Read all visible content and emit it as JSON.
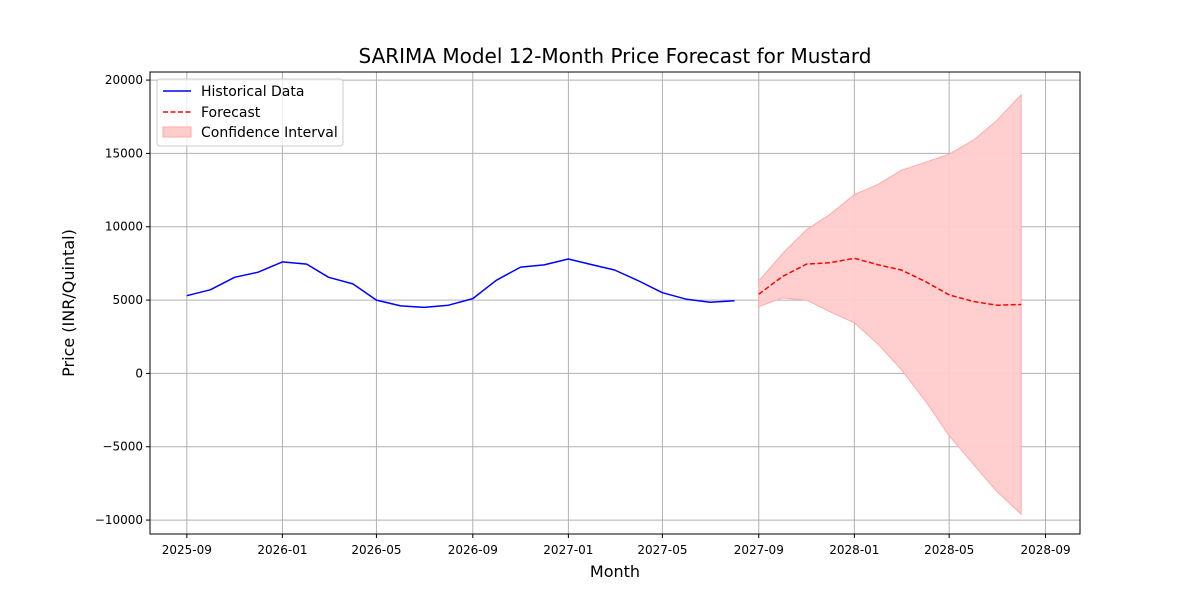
{
  "chart_data": {
    "type": "line",
    "title": "SARIMA Model 12-Month Price Forecast for Mustard",
    "xlabel": "Month",
    "ylabel": "Price (INR/Quintal)",
    "x_ticks": [
      "2025-09",
      "2026-01",
      "2026-05",
      "2026-09",
      "2027-01",
      "2027-05",
      "2027-09",
      "2028-01",
      "2028-05",
      "2028-09"
    ],
    "y_ticks": [
      -10000,
      -5000,
      0,
      5000,
      10000,
      15000,
      20000
    ],
    "y_tick_labels": [
      "−10000",
      "−5000",
      "0",
      "5000",
      "10000",
      "15000",
      "20000"
    ],
    "xlim": [
      "2025-07-16",
      "2028-10-15"
    ],
    "ylim": [
      -10950,
      20550
    ],
    "grid": true,
    "legend_position": "top-left",
    "colors": {
      "historical": "#0000ff",
      "forecast": "#ff0000",
      "confidence": "#ffcccc",
      "confidence_edge": "#ffaaaa"
    },
    "series": [
      {
        "name": "Historical Data",
        "style": "solid",
        "points": [
          {
            "x": "2025-09",
            "y": 5300
          },
          {
            "x": "2025-10",
            "y": 5700
          },
          {
            "x": "2025-11",
            "y": 6550
          },
          {
            "x": "2025-12",
            "y": 6900
          },
          {
            "x": "2026-01",
            "y": 7600
          },
          {
            "x": "2026-02",
            "y": 7450
          },
          {
            "x": "2026-03",
            "y": 6550
          },
          {
            "x": "2026-04",
            "y": 6100
          },
          {
            "x": "2026-05",
            "y": 5000
          },
          {
            "x": "2026-06",
            "y": 4600
          },
          {
            "x": "2026-07",
            "y": 4500
          },
          {
            "x": "2026-08",
            "y": 4650
          },
          {
            "x": "2026-09",
            "y": 5100
          },
          {
            "x": "2026-10",
            "y": 6350
          },
          {
            "x": "2026-11",
            "y": 7250
          },
          {
            "x": "2026-12",
            "y": 7400
          },
          {
            "x": "2027-01",
            "y": 7800
          },
          {
            "x": "2027-02",
            "y": 7400
          },
          {
            "x": "2027-03",
            "y": 7050
          },
          {
            "x": "2027-04",
            "y": 6300
          },
          {
            "x": "2027-05",
            "y": 5500
          },
          {
            "x": "2027-06",
            "y": 5050
          },
          {
            "x": "2027-07",
            "y": 4850
          },
          {
            "x": "2027-08",
            "y": 4950
          }
        ]
      },
      {
        "name": "Forecast",
        "style": "dashed",
        "points": [
          {
            "x": "2027-09",
            "y": 5400
          },
          {
            "x": "2027-10",
            "y": 6600
          },
          {
            "x": "2027-11",
            "y": 7450
          },
          {
            "x": "2027-12",
            "y": 7550
          },
          {
            "x": "2028-01",
            "y": 7850
          },
          {
            "x": "2028-02",
            "y": 7400
          },
          {
            "x": "2028-03",
            "y": 7050
          },
          {
            "x": "2028-04",
            "y": 6250
          },
          {
            "x": "2028-05",
            "y": 5350
          },
          {
            "x": "2028-06",
            "y": 4900
          },
          {
            "x": "2028-07",
            "y": 4650
          },
          {
            "x": "2028-08",
            "y": 4700
          }
        ]
      }
    ],
    "confidence_interval": {
      "name": "Confidence Interval",
      "points": [
        {
          "x": "2027-09",
          "lower": 4550,
          "upper": 6300
        },
        {
          "x": "2027-10",
          "lower": 5150,
          "upper": 8150
        },
        {
          "x": "2027-11",
          "lower": 5000,
          "upper": 9800
        },
        {
          "x": "2027-12",
          "lower": 4200,
          "upper": 10850
        },
        {
          "x": "2028-01",
          "lower": 3450,
          "upper": 12200
        },
        {
          "x": "2028-02",
          "lower": 1950,
          "upper": 12900
        },
        {
          "x": "2028-03",
          "lower": 250,
          "upper": 13850
        },
        {
          "x": "2028-04",
          "lower": -1900,
          "upper": 14400
        },
        {
          "x": "2028-05",
          "lower": -4250,
          "upper": 14950
        },
        {
          "x": "2028-06",
          "lower": -6200,
          "upper": 15900
        },
        {
          "x": "2028-07",
          "lower": -8050,
          "upper": 17250
        },
        {
          "x": "2028-08",
          "lower": -9600,
          "upper": 19000
        }
      ]
    }
  }
}
